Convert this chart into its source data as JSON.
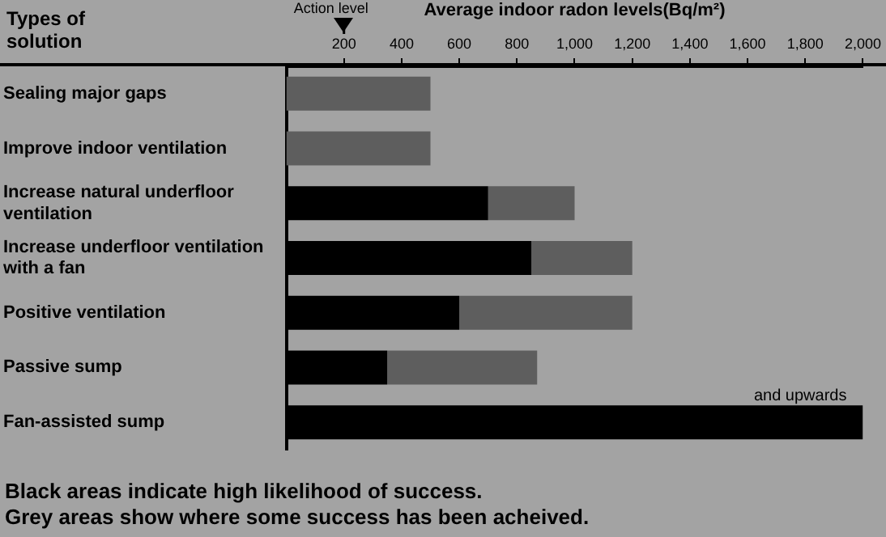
{
  "chart_data": {
    "type": "bar",
    "orientation": "horizontal",
    "stacked": true,
    "ylabel": "Types of solution",
    "xlabel": "Average indoor radon levels(Bq/m²)",
    "categories": [
      "Sealing major gaps",
      "Improve indoor ventilation",
      "Increase natural underfloor ventilation",
      "Increase underfloor ventilation with a fan",
      "Positive ventilation",
      "Passive sump",
      "Fan-assisted sump"
    ],
    "series": [
      {
        "color": "#000000",
        "values": [
          0,
          0,
          700,
          850,
          600,
          350,
          2000
        ]
      },
      {
        "color": "#5e5e5e",
        "values": [
          500,
          500,
          300,
          350,
          600,
          520,
          0
        ]
      }
    ],
    "xlim": [
      0,
      2000
    ],
    "xticks": [
      200,
      400,
      600,
      800,
      {
        "value": 1000,
        "label": "1,000"
      },
      {
        "value": 1200,
        "label": "1,200"
      },
      {
        "value": 1400,
        "label": "1,400"
      },
      {
        "value": 1600,
        "label": "1,600"
      },
      {
        "value": 1800,
        "label": "1,800"
      },
      {
        "value": 2000,
        "label": "2,000"
      }
    ],
    "grid": false,
    "legend": false,
    "ref_lines": [
      {
        "axis": "x",
        "value": 200,
        "label": "Action level"
      }
    ],
    "annotations": [
      {
        "text": "and upwards",
        "x": 2000,
        "y": "Fan-assisted sump"
      },
      "Black areas indicate high likelihood of success.",
      "Grey areas show where some success has been acheived."
    ]
  }
}
